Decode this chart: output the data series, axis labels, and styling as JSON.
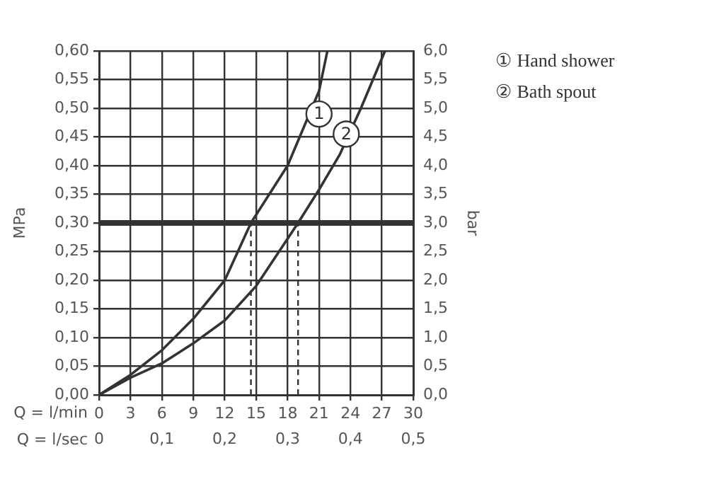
{
  "chart_data": {
    "type": "line",
    "xlabel": "Q = l/min",
    "x2label": "Q = l/sec",
    "ylabel": "MPa",
    "y2label": "bar",
    "xlim": [
      0,
      30
    ],
    "xticks": [
      0,
      3,
      6,
      9,
      12,
      15,
      18,
      21,
      24,
      27,
      30
    ],
    "x2lim": [
      0,
      0.5
    ],
    "x2ticks": [
      0,
      {
        "value": 0.1,
        "label": "0,1"
      },
      {
        "value": 0.2,
        "label": "0,2"
      },
      {
        "value": 0.3,
        "label": "0,3"
      },
      {
        "value": 0.4,
        "label": "0,4"
      },
      {
        "value": 0.5,
        "label": "0,5"
      }
    ],
    "ylim": [
      0,
      0.6
    ],
    "yticks": [
      {
        "value": 0,
        "label": "0,00"
      },
      {
        "value": 0.05,
        "label": "0,05"
      },
      {
        "value": 0.1,
        "label": "0,10"
      },
      {
        "value": 0.15,
        "label": "0,15"
      },
      {
        "value": 0.2,
        "label": "0,20"
      },
      {
        "value": 0.25,
        "label": "0,25"
      },
      {
        "value": 0.3,
        "label": "0,30"
      },
      {
        "value": 0.35,
        "label": "0,35"
      },
      {
        "value": 0.4,
        "label": "0,40"
      },
      {
        "value": 0.45,
        "label": "0,45"
      },
      {
        "value": 0.5,
        "label": "0,50"
      },
      {
        "value": 0.55,
        "label": "0,55"
      },
      {
        "value": 0.6,
        "label": "0,60"
      }
    ],
    "y2lim": [
      0,
      6
    ],
    "y2ticks": [
      {
        "value": 0,
        "label": "0,0"
      },
      {
        "value": 0.5,
        "label": "0,5"
      },
      {
        "value": 1,
        "label": "1,0"
      },
      {
        "value": 1.5,
        "label": "1,5"
      },
      {
        "value": 2,
        "label": "2,0"
      },
      {
        "value": 2.5,
        "label": "2,5"
      },
      {
        "value": 3,
        "label": "3,0"
      },
      {
        "value": 3.5,
        "label": "3,5"
      },
      {
        "value": 4,
        "label": "4,0"
      },
      {
        "value": 4.5,
        "label": "4,5"
      },
      {
        "value": 5,
        "label": "5,0"
      },
      {
        "value": 5.5,
        "label": "5,5"
      },
      {
        "value": 6,
        "label": "6,0"
      }
    ],
    "grid": true,
    "legend": "right",
    "marker": "none",
    "line_style": "solid",
    "series": [
      {
        "name": "① Hand shower",
        "color": "#333333",
        "x": [
          0,
          3,
          6,
          9,
          12,
          14.5,
          18,
          21,
          21.8
        ],
        "values": [
          0,
          0.035,
          0.078,
          0.133,
          0.2,
          0.3,
          0.4,
          0.53,
          0.6
        ]
      },
      {
        "name": "② Bath spout",
        "color": "#333333",
        "x": [
          0,
          3,
          6,
          9,
          12,
          15,
          19,
          21,
          23,
          25,
          27.3
        ],
        "values": [
          0,
          0.03,
          0.055,
          0.09,
          0.13,
          0.19,
          0.3,
          0.358,
          0.42,
          0.5,
          0.6
        ]
      }
    ],
    "ref_lines": [
      {
        "axis": "y",
        "value": 0.3,
        "color": "#333333",
        "line_style": "solid"
      },
      {
        "axis": "x",
        "value": 14.5,
        "color": "#333333",
        "line_style": "dashed"
      },
      {
        "axis": "x",
        "value": 19,
        "color": "#333333",
        "line_style": "dashed"
      }
    ],
    "annotations": [
      {
        "text": "1",
        "x": 21,
        "y": 0.49
      },
      {
        "text": "2",
        "x": 23.6,
        "y": 0.455
      }
    ]
  }
}
